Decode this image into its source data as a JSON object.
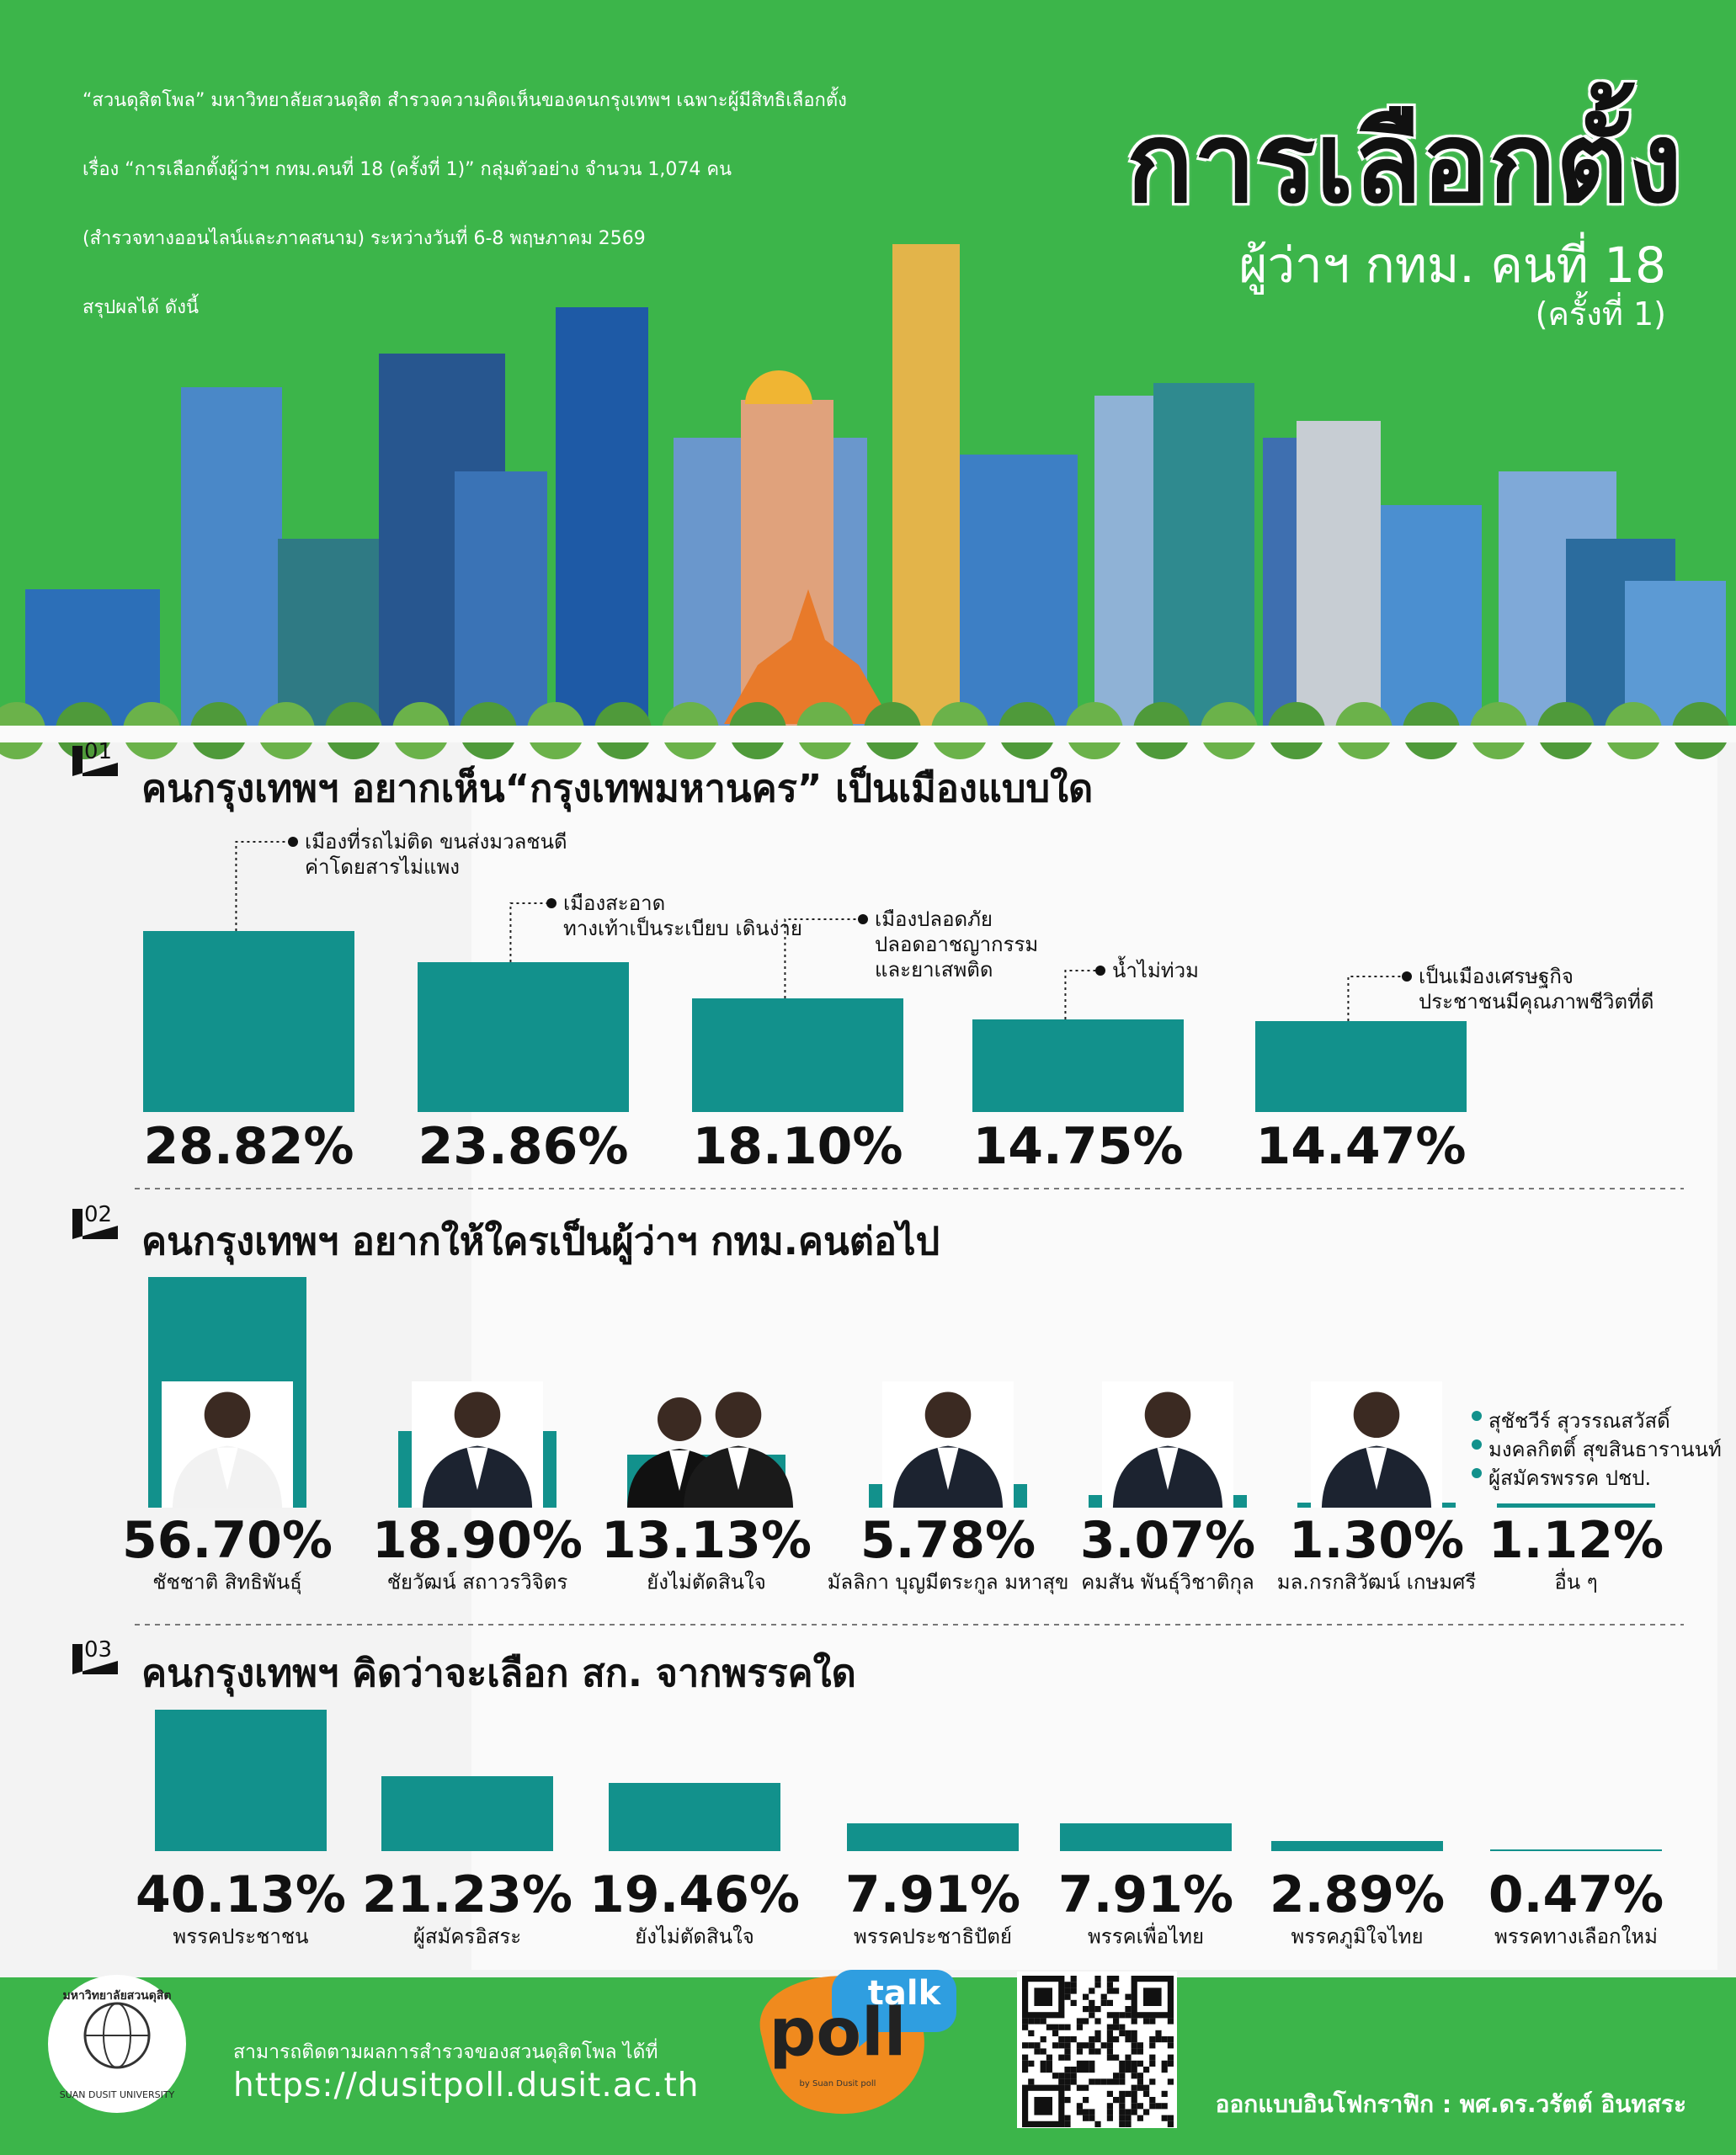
{
  "header": {
    "intro": [
      "“สวนดุสิตโพล” มหาวิทยาลัยสวนดุสิต สำรวจความคิดเห็นของคนกรุงเทพฯ เฉพาะผู้มีสิทธิเลือกตั้ง",
      "เรื่อง “การเลือกตั้งผู้ว่าฯ กทม.คนที่ 18 (ครั้งที่ 1)”  กลุ่มตัวอย่าง จำนวน 1,074 คน",
      "(สำรวจทางออนไลน์และภาคสนาม)  ระหว่างวันที่ 6-8 พฤษภาคม 2569",
      "สรุปผลได้ ดังนี้"
    ],
    "title": "การเลือกตั้ง",
    "subtitle": "ผู้ว่าฯ กทม. คนที่ 18",
    "subtitle_note": "(ครั้งที่ 1)"
  },
  "chart_data": [
    {
      "type": "bar",
      "section": "01",
      "title": "คนกรุงเทพฯ อยากเห็น“กรุงเทพมหานคร” เป็นเมืองแบบใด",
      "categories": [
        "เมืองที่รถไม่ติด ขนส่งมวลชนดี\nค่าโดยสารไม่แพง",
        "เมืองสะอาด\nทางเท้าเป็นระเบียบ เดินง่าย",
        "เมืองปลอดภัย\nปลอดอาชญากรรม\nและยาเสพติด",
        "น้ำไม่ท่วม",
        "เป็นเมืองเศรษฐกิจ\nประชาชนมีคุณภาพชีวิตที่ดี"
      ],
      "values": [
        28.82,
        23.86,
        18.1,
        14.75,
        14.47
      ],
      "value_labels": [
        "28.82%",
        "23.86%",
        "18.10%",
        "14.75%",
        "14.47%"
      ],
      "color": "#12918c"
    },
    {
      "type": "bar",
      "section": "02",
      "title": "คนกรุงเทพฯ อยากให้ใครเป็นผู้ว่าฯ กทม.คนต่อไป",
      "categories": [
        "ชัชชาติ สิทธิพันธุ์",
        "ชัยวัฒน์ สถาวรวิจิตร",
        "ยังไม่ตัดสินใจ",
        "มัลลิกา บุญมีตระกูล มหาสุข",
        "คมสัน พันธุ์วิชาติกุล",
        "มล.กรกสิวัฒน์ เกษมศรี",
        "อื่น ๆ"
      ],
      "values": [
        56.7,
        18.9,
        13.13,
        5.78,
        3.07,
        1.3,
        1.12
      ],
      "value_labels": [
        "56.70%",
        "18.90%",
        "13.13%",
        "5.78%",
        "3.07%",
        "1.30%",
        "1.12%"
      ],
      "color": "#12918c",
      "note": [
        "สุชัชวีร์ สุวรรณสวัสดิ์",
        "มงคลกิตติ์ สุขสินธารานนท์",
        "ผู้สมัครพรรค ปชป."
      ]
    },
    {
      "type": "bar",
      "section": "03",
      "title": "คนกรุงเทพฯ คิดว่าจะเลือก สก. จากพรรคใด",
      "categories": [
        "พรรคประชาชน",
        "ผู้สมัครอิสระ",
        "ยังไม่ตัดสินใจ",
        "พรรคประชาธิปัตย์",
        "พรรคเพื่อไทย",
        "พรรคภูมิใจไทย",
        "พรรคทางเลือกใหม่"
      ],
      "values": [
        40.13,
        21.23,
        19.46,
        7.91,
        7.91,
        2.89,
        0.47
      ],
      "value_labels": [
        "40.13%",
        "21.23%",
        "19.46%",
        "7.91%",
        "7.91%",
        "2.89%",
        "0.47%"
      ],
      "color": "#12918c"
    }
  ],
  "footer": {
    "follow": "สามารถติดตามผลการสำรวจของสวนดุสิตโพล ได้ที่",
    "url": "https://dusitpoll.dusit.ac.th",
    "credit": "ออกแบบอินโฟกราฟิก : พศ.ดร.วรัตต์ อินทสระ",
    "logo_name": "มหาวิทยาลัยสวนดุสิต",
    "logo_en": "SUAN DUSIT UNIVERSITY",
    "poll_logo": "poll",
    "poll_badge": "talk",
    "poll_by": "by Suan Dusit poll"
  }
}
